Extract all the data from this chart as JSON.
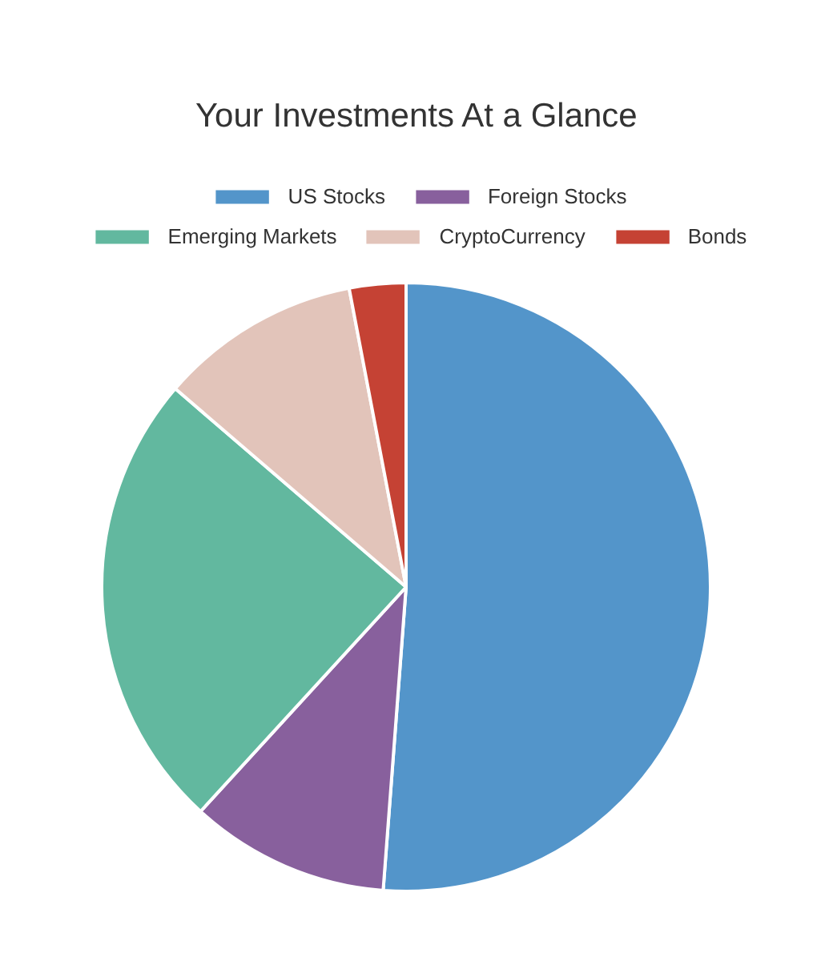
{
  "chart_data": {
    "type": "pie",
    "title": "Your Investments At a Glance",
    "categories": [
      "US Stocks",
      "Foreign Stocks",
      "Emerging Markets",
      "CryptoCurrency",
      "Bonds"
    ],
    "values": [
      51.2,
      10.6,
      24.5,
      10.7,
      3.0
    ],
    "colors": [
      "#5395ca",
      "#88609d",
      "#62b89f",
      "#e2c4ba",
      "#c54234"
    ],
    "legend": "top"
  }
}
